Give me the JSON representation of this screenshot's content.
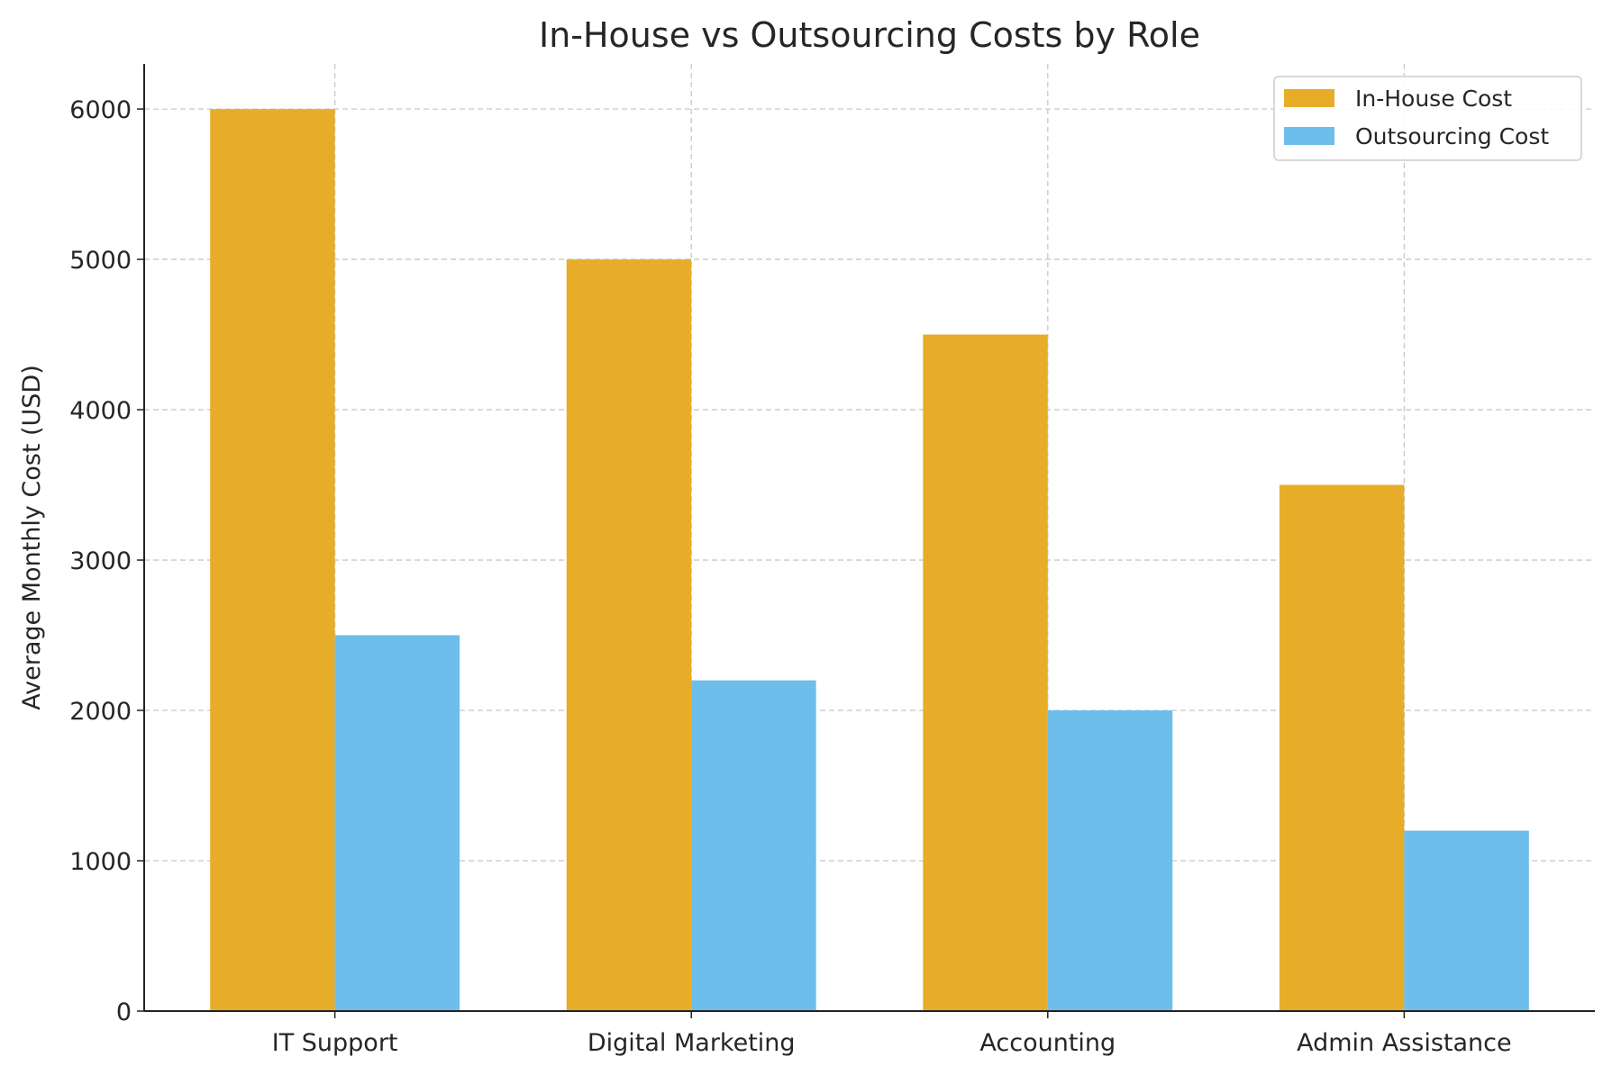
{
  "chart_data": {
    "type": "bar",
    "title": "In-House vs Outsourcing Costs by Role",
    "xlabel": "",
    "ylabel": "Average Monthly Cost (USD)",
    "categories": [
      "IT Support",
      "Digital Marketing",
      "Accounting",
      "Admin Assistance"
    ],
    "series": [
      {
        "name": "In-House Cost",
        "color": "#E8AD28",
        "values": [
          6000,
          5000,
          4500,
          3500
        ]
      },
      {
        "name": "Outsourcing Cost",
        "color": "#6EBEEB",
        "values": [
          2500,
          2200,
          2000,
          1200
        ]
      }
    ],
    "ylim": [
      0,
      6300
    ],
    "yticks": [
      0,
      1000,
      2000,
      3000,
      4000,
      5000,
      6000
    ],
    "grid": true,
    "legend": "top-right"
  }
}
